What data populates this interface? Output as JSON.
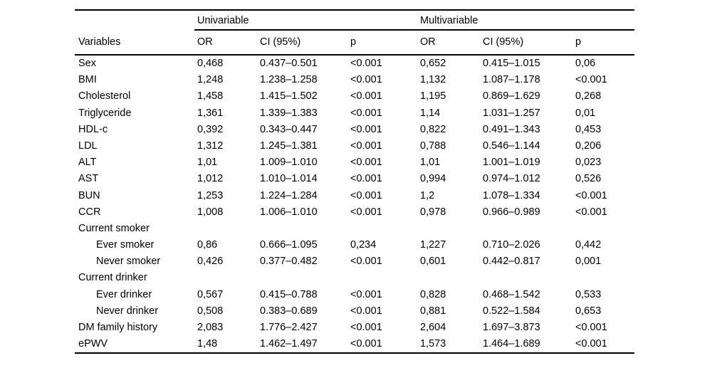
{
  "table": {
    "group_headers": [
      "Univariable",
      "Multivariable"
    ],
    "columns": [
      "Variables",
      "OR",
      "CI (95%)",
      "p",
      "OR",
      "CI (95%)",
      "p"
    ],
    "rows": [
      {
        "label": "Sex",
        "indent": false,
        "cells": [
          "0,468",
          "0.437–0.501",
          "<0.001",
          "0,652",
          "0.415–1.015",
          "0,06"
        ]
      },
      {
        "label": "BMI",
        "indent": false,
        "cells": [
          "1,248",
          "1.238–1.258",
          "<0.001",
          "1,132",
          "1.087–1.178",
          "<0.001"
        ]
      },
      {
        "label": "Cholesterol",
        "indent": false,
        "cells": [
          "1,458",
          "1.415–1.502",
          "<0.001",
          "1,195",
          "0.869–1.629",
          "0,268"
        ]
      },
      {
        "label": "Triglyceride",
        "indent": false,
        "cells": [
          "1,361",
          "1.339–1.383",
          "<0.001",
          "1,14",
          "1.031–1.257",
          "0,01"
        ]
      },
      {
        "label": "HDL-c",
        "indent": false,
        "cells": [
          "0,392",
          "0.343–0.447",
          "<0.001",
          "0,822",
          "0.491–1.343",
          "0,453"
        ]
      },
      {
        "label": "LDL",
        "indent": false,
        "cells": [
          "1,312",
          "1.245–1.381",
          "<0.001",
          "0,788",
          "0.546–1.144",
          "0,206"
        ]
      },
      {
        "label": "ALT",
        "indent": false,
        "cells": [
          "1,01",
          "1.009–1.010",
          "<0.001",
          "1,01",
          "1.001–1.019",
          "0,023"
        ]
      },
      {
        "label": "AST",
        "indent": false,
        "cells": [
          "1,012",
          "1.010–1.014",
          "<0.001",
          "0,994",
          "0.974–1.012",
          "0,526"
        ]
      },
      {
        "label": "BUN",
        "indent": false,
        "cells": [
          "1,253",
          "1.224–1.284",
          "<0.001",
          "1,2",
          "1.078–1.334",
          "<0.001"
        ]
      },
      {
        "label": "CCR",
        "indent": false,
        "cells": [
          "1,008",
          "1.006–1.010",
          "<0.001",
          "0,978",
          "0.966–0.989",
          "<0.001"
        ]
      },
      {
        "label": "Current smoker",
        "indent": false,
        "cells": [
          "",
          "",
          "",
          "",
          "",
          ""
        ]
      },
      {
        "label": "Ever smoker",
        "indent": true,
        "cells": [
          "0,86",
          "0.666–1.095",
          "0,234",
          "1,227",
          "0.710–2.026",
          "0,442"
        ]
      },
      {
        "label": "Never smoker",
        "indent": true,
        "cells": [
          "0,426",
          "0.377–0.482",
          "<0.001",
          "0,601",
          "0.442–0.817",
          "0,001"
        ]
      },
      {
        "label": "Current drinker",
        "indent": false,
        "cells": [
          "",
          "",
          "",
          "",
          "",
          ""
        ]
      },
      {
        "label": "Ever drinker",
        "indent": true,
        "cells": [
          "0,567",
          "0.415–0.788",
          "<0.001",
          "0,828",
          "0.468–1.542",
          "0,533"
        ]
      },
      {
        "label": "Never drinker",
        "indent": true,
        "cells": [
          "0,508",
          "0.383–0.689",
          "<0.001",
          "0,881",
          "0.522–1.584",
          "0,653"
        ]
      },
      {
        "label": "DM family history",
        "indent": false,
        "cells": [
          "2,083",
          "1.776–2.427",
          "<0.001",
          "2,604",
          "1.697–3.873",
          "<0.001"
        ]
      },
      {
        "label": "ePWV",
        "indent": false,
        "cells": [
          "1,48",
          "1.462–1.497",
          "<0.001",
          "1,573",
          "1.464–1.689",
          "<0.001"
        ]
      }
    ]
  },
  "colors": {
    "text": "#000000",
    "rule": "#000000",
    "background": "#ffffff"
  }
}
